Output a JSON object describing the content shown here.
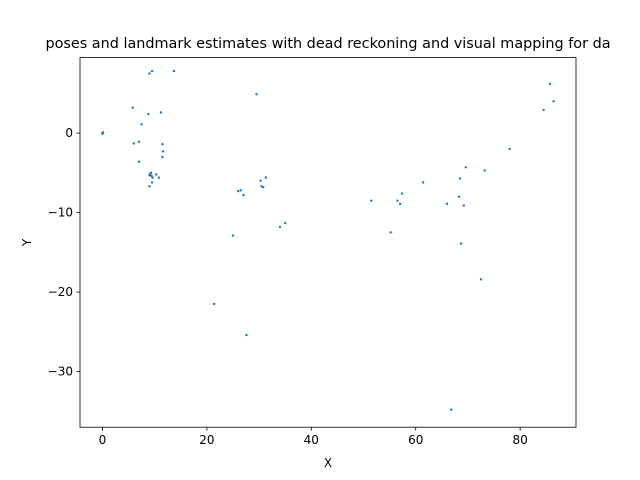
{
  "chart_data": {
    "type": "scatter",
    "title": "poses and landmark estimates with dead reckoning and visual mapping for da",
    "xlabel": "X",
    "ylabel": "Y",
    "xlim": [
      -4.3,
      90.7
    ],
    "ylim": [
      -37.0,
      9.5
    ],
    "xticks": [
      0,
      20,
      40,
      60,
      80
    ],
    "yticks": [
      -30,
      -20,
      -10,
      0
    ],
    "grid": false,
    "marker_color": "#1f77b4",
    "series": [
      {
        "points": [
          [
            0.0,
            0.0
          ],
          [
            0.1,
            0.1
          ],
          [
            0.0,
            -0.1
          ],
          [
            5.8,
            3.2
          ],
          [
            6.0,
            -1.3
          ],
          [
            7.0,
            -1.1
          ],
          [
            7.5,
            1.1
          ],
          [
            7.0,
            -3.6
          ],
          [
            8.8,
            2.4
          ],
          [
            9.0,
            7.5
          ],
          [
            9.5,
            7.8
          ],
          [
            11.2,
            2.6
          ],
          [
            11.5,
            -1.4
          ],
          [
            11.6,
            -2.3
          ],
          [
            11.5,
            -3.0
          ],
          [
            9.0,
            -5.3
          ],
          [
            9.2,
            -5.1
          ],
          [
            9.4,
            -5.4
          ],
          [
            9.3,
            -5.0
          ],
          [
            9.1,
            -5.2
          ],
          [
            9.6,
            -5.6
          ],
          [
            9.5,
            -6.2
          ],
          [
            9.0,
            -6.7
          ],
          [
            10.3,
            -5.2
          ],
          [
            10.8,
            -5.6
          ],
          [
            13.7,
            7.8
          ],
          [
            21.4,
            -21.5
          ],
          [
            25.0,
            -12.9
          ],
          [
            26.0,
            -7.3
          ],
          [
            26.5,
            -7.2
          ],
          [
            27.0,
            -7.8
          ],
          [
            27.6,
            -25.4
          ],
          [
            29.5,
            4.9
          ],
          [
            30.3,
            -6.0
          ],
          [
            30.5,
            -6.7
          ],
          [
            30.8,
            -6.8
          ],
          [
            31.3,
            -5.6
          ],
          [
            34.0,
            -11.8
          ],
          [
            35.0,
            -11.3
          ],
          [
            51.5,
            -8.5
          ],
          [
            55.2,
            -12.5
          ],
          [
            56.5,
            -8.5
          ],
          [
            57.0,
            -8.9
          ],
          [
            57.4,
            -7.6
          ],
          [
            61.4,
            -6.2
          ],
          [
            66.0,
            -8.9
          ],
          [
            66.8,
            -34.8
          ],
          [
            68.3,
            -8.0
          ],
          [
            68.5,
            -5.7
          ],
          [
            68.7,
            -13.9
          ],
          [
            69.2,
            -9.1
          ],
          [
            69.6,
            -4.3
          ],
          [
            72.5,
            -18.4
          ],
          [
            73.2,
            -4.7
          ],
          [
            78.0,
            -2.0
          ],
          [
            84.5,
            2.9
          ],
          [
            85.7,
            6.2
          ],
          [
            86.4,
            4.0
          ]
        ]
      }
    ]
  }
}
